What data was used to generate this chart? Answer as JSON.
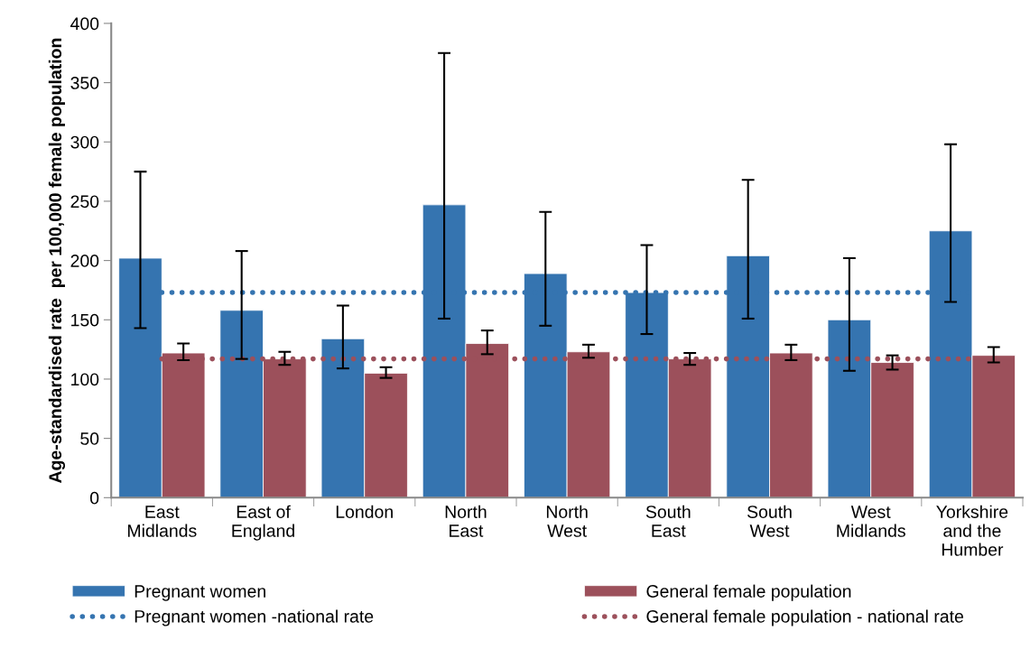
{
  "chart_data": {
    "type": "bar",
    "ylabel": "Age-standardised rate  per 100,000 female population",
    "categories": [
      "East\nMidlands",
      "East of\nEngland",
      "London",
      "North\nEast",
      "North\nWest",
      "South\nEast",
      "South\nWest",
      "West\nMidlands",
      "Yorkshire\nand the\nHumber"
    ],
    "series": [
      {
        "name": "Pregnant women",
        "color": "#3574b0",
        "values": [
          202,
          158,
          134,
          247,
          189,
          173,
          204,
          150,
          225
        ],
        "errors": [
          [
            143,
            275
          ],
          [
            117,
            208
          ],
          [
            109,
            162
          ],
          [
            151,
            375
          ],
          [
            145,
            241
          ],
          [
            138,
            213
          ],
          [
            151,
            268
          ],
          [
            107,
            202
          ],
          [
            165,
            298
          ]
        ]
      },
      {
        "name": "General female population",
        "color": "#9c505b",
        "values": [
          122,
          117,
          105,
          130,
          123,
          117,
          122,
          114,
          120
        ],
        "errors": [
          [
            116,
            130
          ],
          [
            112,
            123
          ],
          [
            101,
            110
          ],
          [
            121,
            141
          ],
          [
            118,
            129
          ],
          [
            112,
            122
          ],
          [
            116,
            129
          ],
          [
            108,
            120
          ],
          [
            114,
            127
          ]
        ]
      }
    ],
    "ref_lines": [
      {
        "axis": "y",
        "value": 173,
        "label": "Pregnant women -national rate",
        "color": "#3574b0",
        "line_style": "dotted"
      },
      {
        "axis": "y",
        "value": 117,
        "label": "General female population - national rate",
        "color": "#9c505b",
        "line_style": "dotted"
      }
    ],
    "ylim": [
      0,
      400
    ],
    "yticks": [
      0,
      50,
      100,
      150,
      200,
      250,
      300,
      350,
      400
    ],
    "grid": false,
    "legend": "bottom"
  }
}
